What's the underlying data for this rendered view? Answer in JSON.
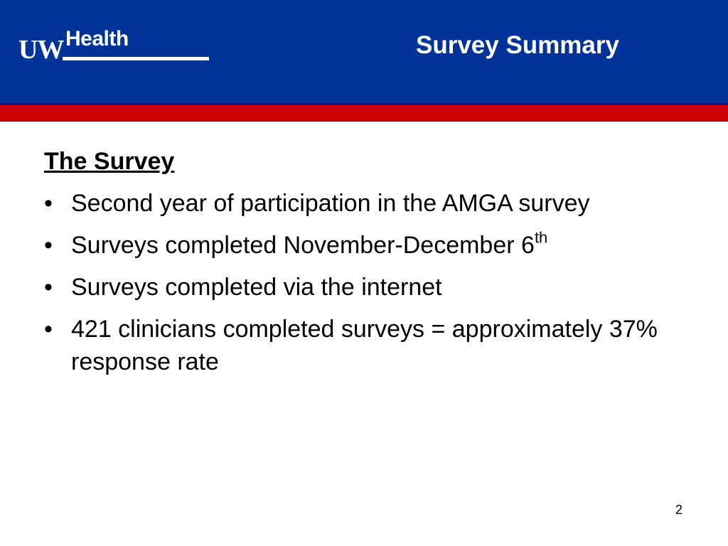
{
  "header": {
    "logo": {
      "uw": "UW",
      "health": "Health"
    },
    "title": "Survey Summary"
  },
  "content": {
    "heading": "The Survey",
    "bullet_glyph": "•",
    "bullets": [
      {
        "text": "Second year of participation in the AMGA survey"
      },
      {
        "text": "Surveys completed November-December 6",
        "sup": "th"
      },
      {
        "text": "Surveys completed via the internet"
      },
      {
        "text": "421 clinicians completed surveys = approximately 37% response rate"
      }
    ]
  },
  "page_number": "2",
  "colors": {
    "header_blue": "#003399",
    "accent_red": "#cc0000"
  }
}
